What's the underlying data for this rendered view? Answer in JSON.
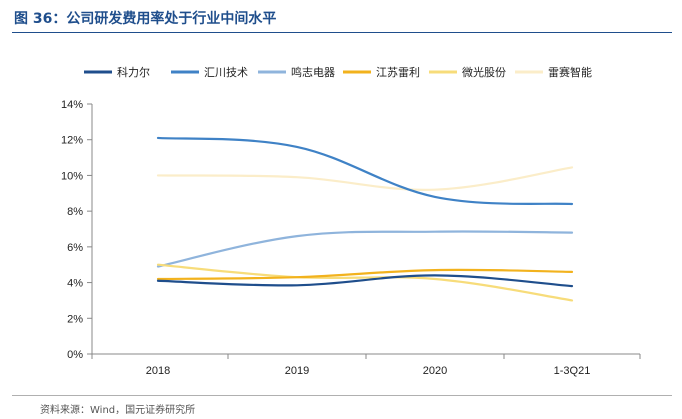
{
  "figure": {
    "title": "图 36：公司研发费用率处于行业中间水平",
    "source": "资料来源：Wind，国元证券研究所"
  },
  "chart_data": {
    "type": "line",
    "categories": [
      "2018",
      "2019",
      "2020",
      "1-3Q21"
    ],
    "ylim": [
      0,
      14
    ],
    "yticks": [
      0,
      2,
      4,
      6,
      8,
      10,
      12,
      14
    ],
    "ytick_labels": [
      "0%",
      "2%",
      "4%",
      "6%",
      "8%",
      "10%",
      "12%",
      "14%"
    ],
    "grid": false,
    "legend_position": "top",
    "series": [
      {
        "name": "科力尔",
        "color": "#1f4e8c",
        "values": [
          4.1,
          3.85,
          4.4,
          3.8
        ]
      },
      {
        "name": "汇川技术",
        "color": "#3f82c6",
        "values": [
          12.1,
          11.6,
          8.8,
          8.4
        ]
      },
      {
        "name": "鸣志电器",
        "color": "#8fb4dc",
        "values": [
          4.9,
          6.6,
          6.85,
          6.8
        ]
      },
      {
        "name": "江苏雷利",
        "color": "#f2b21d",
        "values": [
          4.2,
          4.3,
          4.7,
          4.6
        ]
      },
      {
        "name": "微光股份",
        "color": "#f7dc7a",
        "values": [
          5.0,
          4.3,
          4.2,
          3.0
        ]
      },
      {
        "name": "雷赛智能",
        "color": "#fbedc9",
        "values": [
          10.0,
          9.9,
          9.2,
          10.45
        ]
      }
    ]
  }
}
